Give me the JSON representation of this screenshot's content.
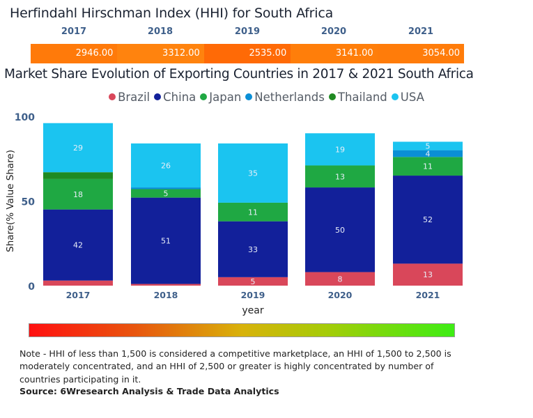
{
  "hhi": {
    "title": "Herfindahl Hirschman Index (HHI) for South Africa",
    "years": [
      "2017",
      "2018",
      "2019",
      "2020",
      "2021"
    ],
    "values": [
      "2946.00",
      "3312.00",
      "2535.00",
      "3141.00",
      "3054.00"
    ],
    "cell_colors": [
      "#ff7a0a",
      "#ff830e",
      "#ff6a06",
      "#ff7e0a",
      "#ff7c0a"
    ]
  },
  "chart_data": {
    "type": "bar",
    "stacked": true,
    "title": "Market Share Evolution of Exporting Countries in 2017 & 2021 South Africa",
    "xlabel": "year",
    "ylabel": "Share(% Value Share)",
    "ylim": [
      0,
      100
    ],
    "yticks": [
      "0",
      "50",
      "100"
    ],
    "categories": [
      "2017",
      "2018",
      "2019",
      "2020",
      "2021"
    ],
    "legend_position": "top-center",
    "series": [
      {
        "name": "Brazil",
        "color": "#d9475a",
        "values": [
          3,
          1,
          5,
          8,
          13
        ],
        "labels": [
          "",
          "",
          "5",
          "8",
          "13"
        ]
      },
      {
        "name": "China",
        "color": "#12209a",
        "values": [
          42,
          51,
          33,
          50,
          52
        ],
        "labels": [
          "42",
          "51",
          "33",
          "50",
          "52"
        ]
      },
      {
        "name": "Japan",
        "color": "#1fa843",
        "values": [
          18,
          5,
          11,
          13,
          11
        ],
        "labels": [
          "18",
          "5",
          "11",
          "13",
          "11"
        ]
      },
      {
        "name": "Netherlands",
        "color": "#0a8fd6",
        "values": [
          0,
          1,
          0,
          0,
          4
        ],
        "labels": [
          "",
          "",
          "",
          "",
          "4"
        ]
      },
      {
        "name": "Thailand",
        "color": "#1f8a22",
        "values": [
          4,
          0,
          0,
          0,
          0
        ],
        "labels": [
          "",
          "",
          "",
          "",
          ""
        ]
      },
      {
        "name": "USA",
        "color": "#1bc4f0",
        "values": [
          29,
          26,
          35,
          19,
          5
        ],
        "labels": [
          "29",
          "26",
          "35",
          "19",
          "5"
        ]
      }
    ]
  },
  "gradient": {
    "from": "#ff1010",
    "to": "#3ded14"
  },
  "note": "Note - HHI of less than 1,500 is considered a competitive marketplace, an HHI of 1,500 to 2,500 is moderately concentrated, and an HHI of 2,500 or greater is highly concentrated by number of countries participating in it.",
  "source": "Source: 6Wresearch Analysis & Trade Data Analytics"
}
